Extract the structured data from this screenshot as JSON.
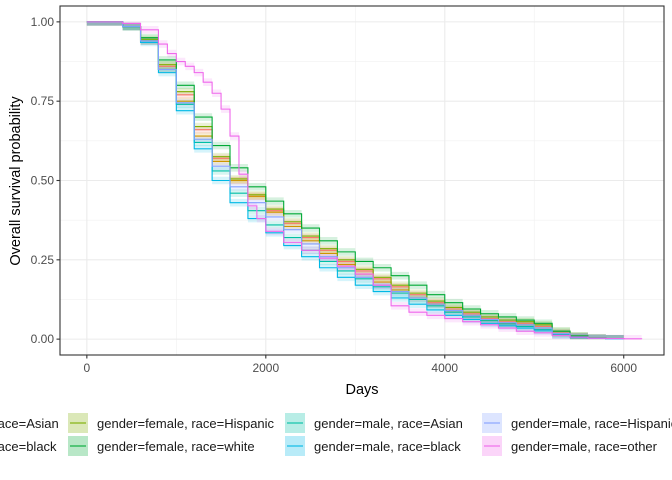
{
  "chart_data": {
    "type": "line",
    "title": "",
    "xlabel": "Days",
    "ylabel": "Overall survival probability",
    "xlim": [
      -300,
      6450
    ],
    "ylim": [
      -0.05,
      1.05
    ],
    "x_ticks": [
      0,
      2000,
      4000,
      6000
    ],
    "x_tick_labels": [
      "0",
      "2000",
      "4000",
      "6000"
    ],
    "y_ticks": [
      0,
      0.25,
      0.5,
      0.75,
      1
    ],
    "y_tick_labels": [
      "0.00",
      "0.25",
      "0.50",
      "0.75",
      "1.00"
    ],
    "grid": true,
    "legend_position": "bottom",
    "legend_labels": [
      "gender=female, race=Asian",
      "gender=female, race=black",
      "gender=female, race=Hispanic",
      "gender=female, race=white",
      "gender=male, race=Asian",
      "gender=male, race=black",
      "gender=male, race=Hispanic",
      "gender=male, race=other"
    ],
    "series": [
      {
        "name": "gender=female, race=Asian",
        "color": "#F8766D",
        "x": [
          0,
          200,
          400,
          600,
          800,
          1000,
          1200,
          1400,
          1600,
          1800,
          2000,
          2200,
          2400,
          2600,
          2800,
          3000,
          3200,
          3400,
          3600,
          3800,
          4000,
          4200,
          4400,
          4600,
          4800,
          5000,
          5200,
          5400,
          5600,
          5800,
          6000
        ],
        "y": [
          1,
          1,
          0.985,
          0.94,
          0.86,
          0.77,
          0.66,
          0.57,
          0.5,
          0.45,
          0.405,
          0.365,
          0.32,
          0.28,
          0.245,
          0.215,
          0.19,
          0.165,
          0.14,
          0.115,
          0.095,
          0.08,
          0.065,
          0.055,
          0.05,
          0.04,
          0.02,
          0.008,
          0.003,
          0.001,
          0
        ]
      },
      {
        "name": "gender=female, race=black",
        "color": "#CD9600",
        "x": [
          0,
          200,
          400,
          600,
          800,
          1000,
          1200,
          1400,
          1600,
          1800,
          2000,
          2200,
          2400,
          2600,
          2800,
          3000,
          3200,
          3400,
          3600,
          3800,
          4000,
          4200,
          4400,
          4600,
          4800,
          5000,
          5200,
          5400,
          5600,
          5800,
          6000
        ],
        "y": [
          1,
          1,
          0.985,
          0.94,
          0.85,
          0.75,
          0.64,
          0.56,
          0.5,
          0.45,
          0.4,
          0.355,
          0.31,
          0.27,
          0.235,
          0.205,
          0.18,
          0.155,
          0.13,
          0.11,
          0.09,
          0.075,
          0.06,
          0.05,
          0.045,
          0.035,
          0.018,
          0.007,
          0.002,
          0.001,
          0
        ]
      },
      {
        "name": "gender=female, race=Hispanic",
        "color": "#7CAE00",
        "x": [
          0,
          200,
          400,
          600,
          800,
          1000,
          1200,
          1400,
          1600,
          1800,
          2000,
          2200,
          2400,
          2600,
          2800,
          3000,
          3200,
          3400,
          3600,
          3800,
          4000,
          4200,
          4400,
          4600,
          4800,
          5000,
          5200,
          5400,
          5600,
          5800,
          6000
        ],
        "y": [
          1,
          1,
          0.985,
          0.945,
          0.865,
          0.78,
          0.67,
          0.575,
          0.505,
          0.455,
          0.41,
          0.37,
          0.325,
          0.285,
          0.25,
          0.22,
          0.195,
          0.17,
          0.145,
          0.12,
          0.1,
          0.085,
          0.07,
          0.06,
          0.055,
          0.045,
          0.025,
          0.01,
          0.003,
          0.001,
          0
        ]
      },
      {
        "name": "gender=female, race=white",
        "color": "#00A936",
        "x": [
          0,
          200,
          400,
          600,
          800,
          1000,
          1200,
          1400,
          1600,
          1800,
          2000,
          2200,
          2400,
          2600,
          2800,
          3000,
          3200,
          3400,
          3600,
          3800,
          4000,
          4200,
          4400,
          4600,
          4800,
          5000,
          5200,
          5400,
          5600,
          5800,
          6000
        ],
        "y": [
          1,
          1,
          0.985,
          0.95,
          0.88,
          0.8,
          0.7,
          0.61,
          0.54,
          0.48,
          0.435,
          0.395,
          0.35,
          0.31,
          0.275,
          0.245,
          0.225,
          0.2,
          0.17,
          0.14,
          0.115,
          0.095,
          0.08,
          0.07,
          0.06,
          0.05,
          0.025,
          0.01,
          0.004,
          0.001,
          0
        ]
      },
      {
        "name": "gender=male, race=Asian",
        "color": "#00BFA5",
        "x": [
          0,
          200,
          400,
          600,
          800,
          1000,
          1200,
          1400,
          1600,
          1800,
          2000,
          2200,
          2400,
          2600,
          2800,
          3000,
          3200,
          3400,
          3600,
          3800,
          4000,
          4200,
          4400,
          4600,
          4800,
          5000,
          5200,
          5400,
          5600,
          5800,
          6000
        ],
        "y": [
          1,
          1,
          0.985,
          0.94,
          0.85,
          0.74,
          0.62,
          0.53,
          0.46,
          0.405,
          0.36,
          0.32,
          0.28,
          0.245,
          0.215,
          0.19,
          0.165,
          0.145,
          0.125,
          0.105,
          0.085,
          0.07,
          0.058,
          0.048,
          0.04,
          0.03,
          0.015,
          0.006,
          0.002,
          0.001,
          0
        ]
      },
      {
        "name": "gender=male, race=black",
        "color": "#00B8E5",
        "x": [
          0,
          200,
          400,
          600,
          800,
          1000,
          1200,
          1400,
          1600,
          1800,
          2000,
          2200,
          2400,
          2600,
          2800,
          3000,
          3200,
          3400,
          3600,
          3800,
          4000,
          4200,
          4400,
          4600,
          4800,
          5000,
          5200,
          5400,
          5600,
          5800,
          6000
        ],
        "y": [
          1,
          1,
          0.985,
          0.935,
          0.84,
          0.72,
          0.6,
          0.5,
          0.43,
          0.38,
          0.335,
          0.295,
          0.26,
          0.225,
          0.195,
          0.17,
          0.15,
          0.13,
          0.11,
          0.092,
          0.075,
          0.062,
          0.05,
          0.042,
          0.035,
          0.026,
          0.013,
          0.005,
          0.002,
          0.001,
          0
        ]
      },
      {
        "name": "gender=male, race=Hispanic",
        "color": "#84A0FF",
        "x": [
          0,
          200,
          400,
          600,
          800,
          1000,
          1200,
          1400,
          1600,
          1800,
          2000,
          2200,
          2400,
          2600,
          2800,
          3000,
          3200,
          3400,
          3600,
          3800,
          4000,
          4200,
          4400,
          4600,
          4800,
          5000,
          5200,
          5400,
          5600,
          5800,
          6000
        ],
        "y": [
          1,
          1,
          0.985,
          0.94,
          0.85,
          0.745,
          0.63,
          0.545,
          0.48,
          0.43,
          0.385,
          0.345,
          0.3,
          0.26,
          0.225,
          0.195,
          0.17,
          0.15,
          0.13,
          0.11,
          0.09,
          0.075,
          0.062,
          0.052,
          0.045,
          0.035,
          0.018,
          0.007,
          0.002,
          0.001,
          0
        ]
      },
      {
        "name": "gender=male, race=other",
        "color": "#EF67EB",
        "x": [
          0,
          200,
          400,
          600,
          800,
          900,
          1000,
          1100,
          1200,
          1300,
          1400,
          1500,
          1600,
          1700,
          1800,
          1900,
          2000,
          2200,
          2400,
          2600,
          2800,
          3000,
          3200,
          3400,
          3600,
          3800,
          4000,
          4200,
          4400,
          4600,
          4800,
          5000,
          5200,
          5400,
          5600,
          5800,
          6000,
          6200
        ],
        "y": [
          1,
          1,
          0.995,
          0.975,
          0.93,
          0.9,
          0.875,
          0.86,
          0.84,
          0.81,
          0.775,
          0.725,
          0.64,
          0.52,
          0.42,
          0.38,
          0.34,
          0.305,
          0.28,
          0.255,
          0.23,
          0.205,
          0.17,
          0.105,
          0.085,
          0.075,
          0.065,
          0.055,
          0.045,
          0.035,
          0.025,
          0.02,
          0.012,
          0.006,
          0.003,
          0.002,
          0.001,
          0
        ]
      }
    ]
  }
}
